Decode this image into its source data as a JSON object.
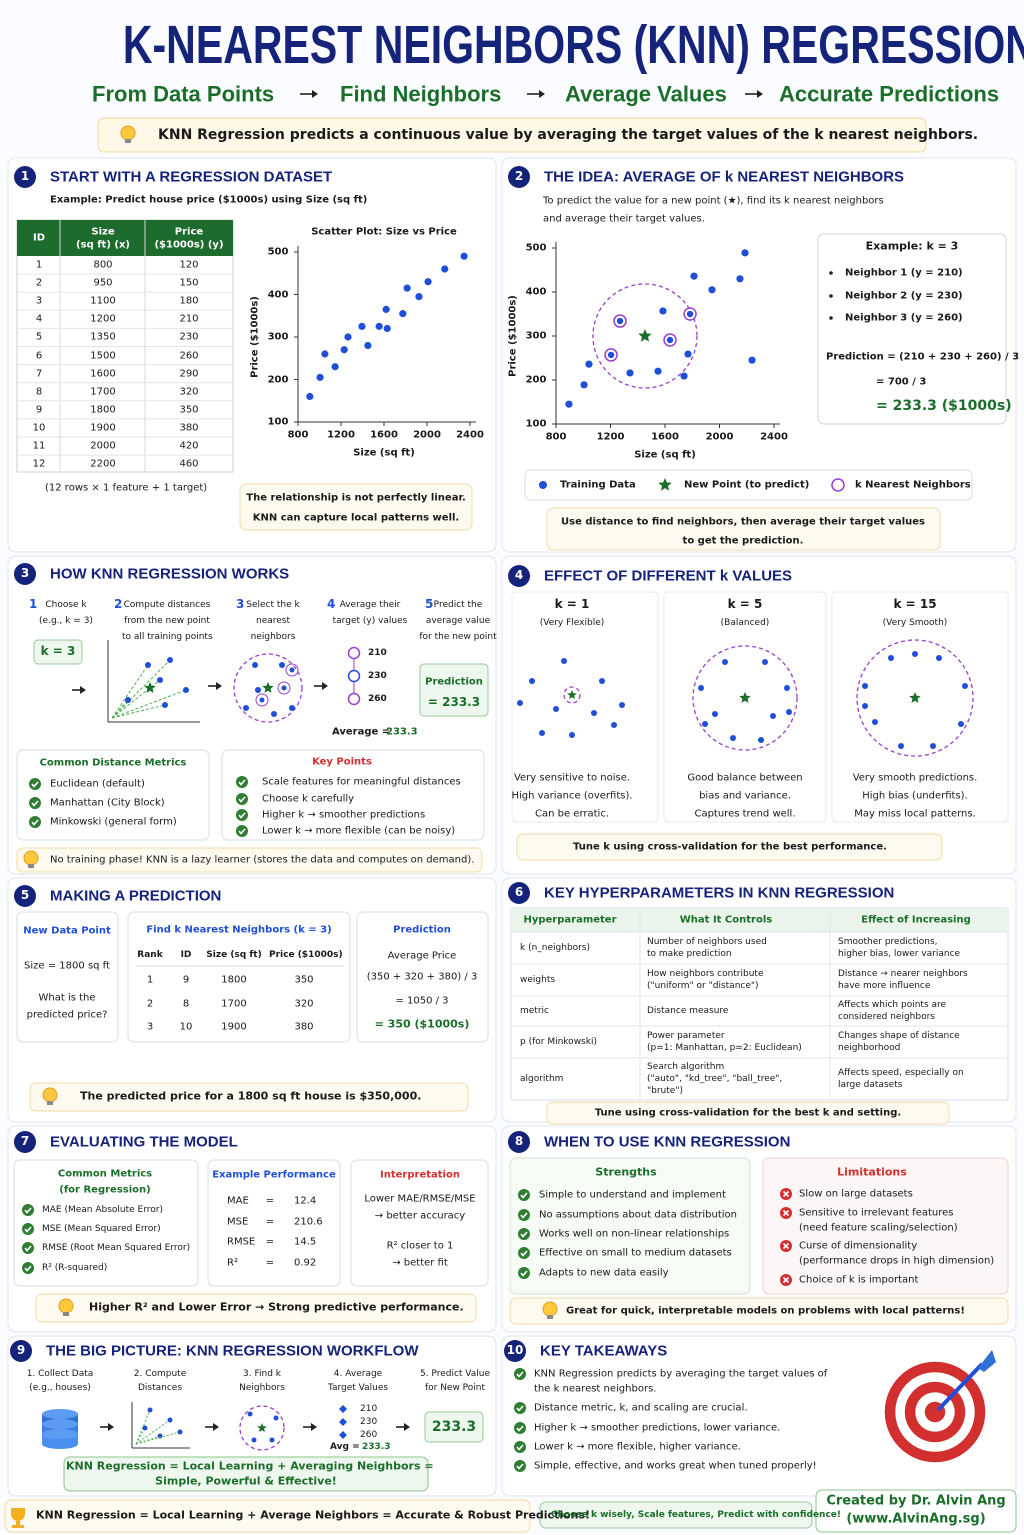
{
  "header": {
    "title": "K-NEAREST NEIGHBORS (KNN) REGRESSION",
    "steps": [
      "From Data Points",
      "Find Neighbors",
      "Average Values",
      "Accurate Predictions"
    ],
    "intro": "KNN Regression predicts a continuous value by averaging the target values of the k nearest neighbors."
  },
  "chart_data": [
    {
      "type": "scatter",
      "title": "Scatter Plot: Size vs Price",
      "x_label": "Size (sq ft)",
      "y_label": "Price ($1000s)",
      "color": "#1f4fd8",
      "x": [
        910,
        1005,
        1050,
        1145,
        1230,
        1265,
        1395,
        1450,
        1555,
        1620,
        1630,
        1775,
        1815,
        1925,
        2010,
        2165,
        2345
      ],
      "y": [
        160,
        205,
        260,
        230,
        270,
        300,
        325,
        280,
        325,
        365,
        320,
        355,
        415,
        395,
        430,
        460,
        490
      ],
      "xlim": [
        800,
        2400
      ],
      "ylim": [
        100,
        500
      ],
      "xticks": [
        800,
        1200,
        1600,
        2000,
        2400
      ],
      "yticks": [
        100,
        200,
        300,
        400,
        500
      ]
    },
    {
      "type": "scatter",
      "x_label": "Size (sq ft)",
      "y_label": "Price ($1000s)",
      "xlim": [
        800,
        2400
      ],
      "ylim": [
        100,
        500
      ],
      "xticks": [
        800,
        1200,
        1600,
        2000,
        2400
      ],
      "yticks": [
        100,
        200,
        300,
        400,
        500
      ],
      "series": [
        {
          "name": "Training Data",
          "color": "#1f4fd8",
          "marker": "dot",
          "x": [
            895,
            1006,
            1042,
            1343,
            1549,
            1585,
            1740,
            1769,
            1813,
            1945,
            2150,
            2187,
            2239
          ],
          "y": [
            145,
            189,
            236,
            216,
            220,
            357,
            209,
            259,
            436,
            405,
            430,
            489,
            245
          ]
        },
        {
          "name": "New Point (to predict)",
          "color": "#1b6e2a",
          "marker": "star",
          "x": [
            1453
          ],
          "y": [
            300
          ]
        },
        {
          "name": "k Nearest Neighbors",
          "color": "#9b3fd1",
          "marker": "ring",
          "x": [
            1204,
            1270,
            1637,
            1784
          ],
          "y": [
            257,
            334,
            291,
            350
          ]
        }
      ]
    }
  ],
  "s1": {
    "num": "1",
    "title": "START WITH A REGRESSION DATASET",
    "example": "Example: Predict house price ($1000s) using Size (sq ft)",
    "table": {
      "header": [
        [
          "ID"
        ],
        [
          "Size",
          "(sq ft) (x)"
        ],
        [
          "Price",
          "($1000s) (y)"
        ]
      ],
      "rows": [
        [
          1,
          800,
          120
        ],
        [
          2,
          950,
          150
        ],
        [
          3,
          1100,
          180
        ],
        [
          4,
          1200,
          210
        ],
        [
          5,
          1350,
          230
        ],
        [
          6,
          1500,
          260
        ],
        [
          7,
          1600,
          290
        ],
        [
          8,
          1700,
          320
        ],
        [
          9,
          1800,
          350
        ],
        [
          10,
          1900,
          380
        ],
        [
          11,
          2000,
          420
        ],
        [
          12,
          2200,
          460
        ]
      ]
    },
    "shape_note": "(12 rows × 1 feature + 1 target)",
    "callout": [
      "The relationship is not perfectly linear.",
      "KNN can capture local patterns well."
    ]
  },
  "s2": {
    "num": "2",
    "title": "THE IDEA: AVERAGE OF k NEAREST NEIGHBORS",
    "desc": [
      "To predict the value for a new point (★), find its k nearest neighbors",
      "and average their target values."
    ],
    "example": {
      "title": "Example: k = 3",
      "neighbors": [
        "Neighbor 1 (y = 210)",
        "Neighbor 2 (y = 230)",
        "Neighbor 3 (y = 260)"
      ],
      "prediction": [
        "Prediction = (210 + 230 + 260) / 3",
        "= 700 / 3",
        "= 233.3 ($1000s)"
      ]
    },
    "note": [
      "Use distance to find neighbors, then average their target values",
      "to get the prediction."
    ]
  },
  "s3": {
    "num": "3",
    "title": "HOW KNN REGRESSION WORKS",
    "steps": [
      {
        "num": "1",
        "lines": [
          "Choose k",
          "(e.g., k = 3)"
        ]
      },
      {
        "num": "2",
        "lines": [
          "Compute distances",
          "from the new point",
          "to all training points"
        ]
      },
      {
        "num": "3",
        "lines": [
          "Select the k",
          "nearest",
          "neighbors"
        ]
      },
      {
        "num": "4",
        "lines": [
          "Average their",
          "target (y) values"
        ]
      },
      {
        "num": "5",
        "lines": [
          "Predict the",
          "average value",
          "for the new point"
        ]
      }
    ],
    "k_box": "k = 3",
    "values": [
      210,
      230,
      260
    ],
    "average_label": "Average =",
    "average": 233.3,
    "prediction_title": "Prediction",
    "prediction": "= 233.3",
    "metrics": {
      "title": "Common Distance Metrics",
      "items": [
        "Euclidean (default)",
        "Manhattan (City Block)",
        "Minkowski (general form)"
      ]
    },
    "key_points": {
      "title": "Key Points",
      "items": [
        "Scale features for meaningful distances",
        "Choose k carefully",
        "Higher k → smoother predictions",
        "Lower k → more flexible (can be noisy)"
      ]
    },
    "tip": "No training phase! KNN is a lazy learner (stores the data and computes on demand)."
  },
  "s4": {
    "num": "4",
    "title": "EFFECT OF DIFFERENT k VALUES",
    "columns": [
      {
        "k": "k = 1",
        "label": "(Very Flexible)",
        "notes": [
          "Very sensitive to noise.",
          "High variance (overfits).",
          "Can be erratic."
        ]
      },
      {
        "k": "k = 5",
        "label": "(Balanced)",
        "notes": [
          "Good balance between",
          "bias and variance.",
          "Captures trend well."
        ]
      },
      {
        "k": "k = 15",
        "label": "(Very Smooth)",
        "notes": [
          "Very smooth predictions.",
          "High bias (underfits).",
          "May miss local patterns."
        ]
      }
    ],
    "note": "Tune k using cross-validation for the best performance."
  },
  "s5": {
    "num": "5",
    "title": "MAKING A PREDICTION",
    "new_point": {
      "title": "New Data Point",
      "size": "Size = 1800 sq ft",
      "question": [
        "What is the",
        "predicted price?"
      ]
    },
    "neighbors": {
      "title": "Find k Nearest Neighbors (k = 3)",
      "header": [
        "Rank",
        "ID",
        "Size (sq ft)",
        "Price ($1000s)"
      ],
      "rows": [
        [
          1,
          9,
          1800,
          350
        ],
        [
          2,
          8,
          1700,
          320
        ],
        [
          3,
          10,
          1900,
          380
        ]
      ]
    },
    "prediction": {
      "title": "Prediction",
      "lines": [
        "Average Price",
        "(350 + 320 + 380) / 3",
        "= 1050 / 3",
        "= 350 ($1000s)"
      ]
    },
    "tip": "The predicted price for a 1800 sq ft house is $350,000."
  },
  "s6": {
    "num": "6",
    "title": "KEY HYPERPARAMETERS IN KNN REGRESSION",
    "header": [
      "Hyperparameter",
      "What It Controls",
      "Effect of Increasing"
    ],
    "rows": [
      [
        [
          "k (n_neighbors)"
        ],
        [
          "Number of neighbors used",
          "to make prediction"
        ],
        [
          "Smoother predictions,",
          "higher bias, lower variance"
        ]
      ],
      [
        [
          "weights"
        ],
        [
          "How neighbors contribute",
          "(\"uniform\" or \"distance\")"
        ],
        [
          "Distance → nearer neighbors",
          "have more influence"
        ]
      ],
      [
        [
          "metric"
        ],
        [
          "Distance measure"
        ],
        [
          "Affects which points are",
          "considered neighbors"
        ]
      ],
      [
        [
          "p (for Minkowski)"
        ],
        [
          "Power parameter",
          "(p=1: Manhattan, p=2: Euclidean)"
        ],
        [
          "Changes shape of distance",
          "neighborhood"
        ]
      ],
      [
        [
          "algorithm"
        ],
        [
          "Search algorithm",
          "(\"auto\", \"kd_tree\", \"ball_tree\",",
          "\"brute\")"
        ],
        [
          "Affects speed, especially on",
          "large datasets"
        ]
      ]
    ],
    "note": "Tune using cross-validation for the best k and setting."
  },
  "s7": {
    "num": "7",
    "title": "EVALUATING THE MODEL",
    "metrics": {
      "title": [
        "Common Metrics",
        "(for Regression)"
      ],
      "items": [
        "MAE (Mean Absolute Error)",
        "MSE (Mean Squared Error)",
        "RMSE (Root Mean Squared Error)",
        "R² (R-squared)"
      ]
    },
    "performance": {
      "title": "Example Performance",
      "rows": [
        [
          "MAE",
          "=",
          12.4
        ],
        [
          "MSE",
          "=",
          210.6
        ],
        [
          "RMSE",
          "=",
          14.5
        ],
        [
          "R²",
          "=",
          0.92
        ]
      ]
    },
    "interpretation": {
      "title": "Interpretation",
      "lines": [
        "Lower MAE/RMSE/MSE",
        "→ better accuracy",
        "R²   closer to 1",
        "→ better fit"
      ]
    },
    "tip": "Higher R² and Lower Error → Strong predictive performance."
  },
  "s8": {
    "num": "8",
    "title": "WHEN TO USE KNN REGRESSION",
    "strengths": {
      "title": "Strengths",
      "items": [
        "Simple to understand and implement",
        "No assumptions about data distribution",
        "Works well on non-linear relationships",
        "Effective on small to medium datasets",
        "Adapts to new data easily"
      ]
    },
    "limitations": {
      "title": "Limitations",
      "items": [
        [
          "Slow on large datasets"
        ],
        [
          "Sensitive to irrelevant features",
          "(need feature scaling/selection)"
        ],
        [
          "Curse of dimensionality",
          "(performance drops in high dimension)"
        ],
        [
          "Choice of k is important"
        ]
      ]
    },
    "tip": "Great for quick, interpretable models on problems with local patterns!"
  },
  "s9": {
    "num": "9",
    "title": "THE BIG PICTURE: KNN REGRESSION WORKFLOW",
    "steps": [
      [
        "1. Collect Data",
        "(e.g., houses)"
      ],
      [
        "2. Compute",
        "Distances"
      ],
      [
        "3. Find k",
        "Neighbors"
      ],
      [
        "4. Average",
        "Target Values"
      ],
      [
        "5. Predict Value",
        "for New Point"
      ]
    ],
    "values": [
      210,
      230,
      260
    ],
    "avg_label": "Avg =",
    "avg": 233.3,
    "result": 233.3,
    "banner": [
      "KNN Regression = Local Learning + Averaging Neighbors =",
      "Simple, Powerful & Effective!"
    ]
  },
  "s10": {
    "num": "10",
    "title": "KEY TAKEAWAYS",
    "items": [
      [
        "KNN Regression predicts by averaging the target values of",
        "the k nearest neighbors."
      ],
      [
        "Distance metric, k, and scaling are crucial."
      ],
      [
        "Higher k → smoother predictions, lower variance."
      ],
      [
        "Lower k → more flexible, higher variance."
      ],
      [
        "Simple, effective, and works great when tuned properly!"
      ]
    ]
  },
  "footer": {
    "summary": "KNN Regression = Local Learning + Average Neighbors = Accurate & Robust Predictions!",
    "advice": "Choose k wisely, Scale features, Predict with confidence!",
    "credit": [
      "Created by Dr. Alvin Ang",
      "(www.AlvinAng.sg)"
    ]
  }
}
